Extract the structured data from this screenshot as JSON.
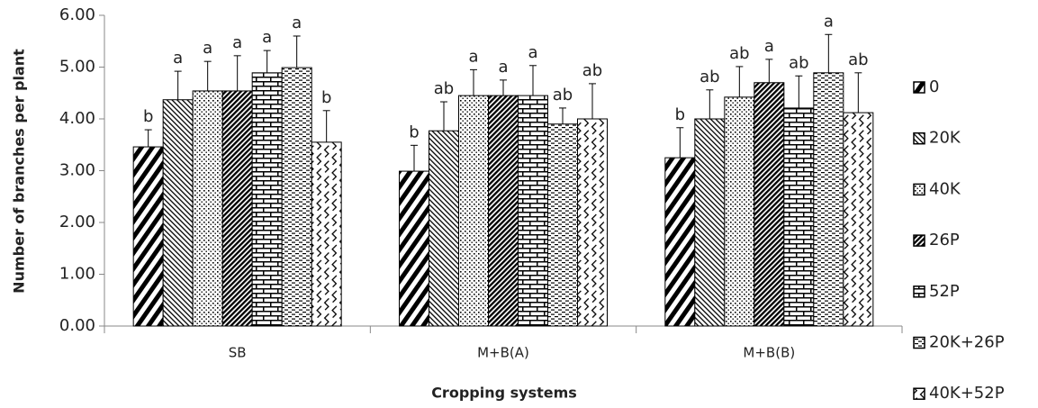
{
  "chart_data": {
    "type": "bar",
    "y_label": "Number of branches per plant",
    "x_label": "Cropping systems",
    "categories": [
      "SB",
      "M+B(A)",
      "M+B(B)"
    ],
    "ylim": [
      0,
      6
    ],
    "yticks": [
      {
        "value": 0,
        "label": "0.00"
      },
      {
        "value": 1,
        "label": "1.00"
      },
      {
        "value": 2,
        "label": "2.00"
      },
      {
        "value": 3,
        "label": "3.00"
      },
      {
        "value": 4,
        "label": "4.00"
      },
      {
        "value": 5,
        "label": "5.00"
      },
      {
        "value": 6,
        "label": "6.00"
      }
    ],
    "legend": "right",
    "series": [
      {
        "name": "0",
        "color": "#000000",
        "values": [
          3.46,
          2.99,
          3.25
        ],
        "errors": [
          0.33,
          0.5,
          0.58
        ],
        "labels": [
          "b",
          "b",
          "b"
        ]
      },
      {
        "name": "20K",
        "color": "#000000",
        "values": [
          4.37,
          3.77,
          4.0
        ],
        "errors": [
          0.55,
          0.56,
          0.56
        ],
        "labels": [
          "a",
          "ab",
          "ab"
        ]
      },
      {
        "name": "40K",
        "color": "#000000",
        "values": [
          4.54,
          4.45,
          4.42
        ],
        "errors": [
          0.57,
          0.5,
          0.59
        ],
        "labels": [
          "a",
          "a",
          "ab"
        ]
      },
      {
        "name": "26P",
        "color": "#000000",
        "values": [
          4.54,
          4.45,
          4.7
        ],
        "errors": [
          0.68,
          0.3,
          0.45
        ],
        "labels": [
          "a",
          "a",
          "a"
        ]
      },
      {
        "name": "52P",
        "color": "#000000",
        "values": [
          4.89,
          4.45,
          4.21
        ],
        "errors": [
          0.43,
          0.58,
          0.62
        ],
        "labels": [
          "a",
          "a",
          "ab"
        ]
      },
      {
        "name": "20K+26P",
        "color": "#000000",
        "values": [
          4.99,
          3.9,
          4.89
        ],
        "errors": [
          0.61,
          0.31,
          0.74
        ],
        "labels": [
          "a",
          "ab",
          "a"
        ]
      },
      {
        "name": "40K+52P",
        "color": "#000000",
        "values": [
          3.55,
          4.0,
          4.12
        ],
        "errors": [
          0.61,
          0.68,
          0.77
        ],
        "labels": [
          "b",
          "ab",
          "ab"
        ]
      }
    ]
  }
}
